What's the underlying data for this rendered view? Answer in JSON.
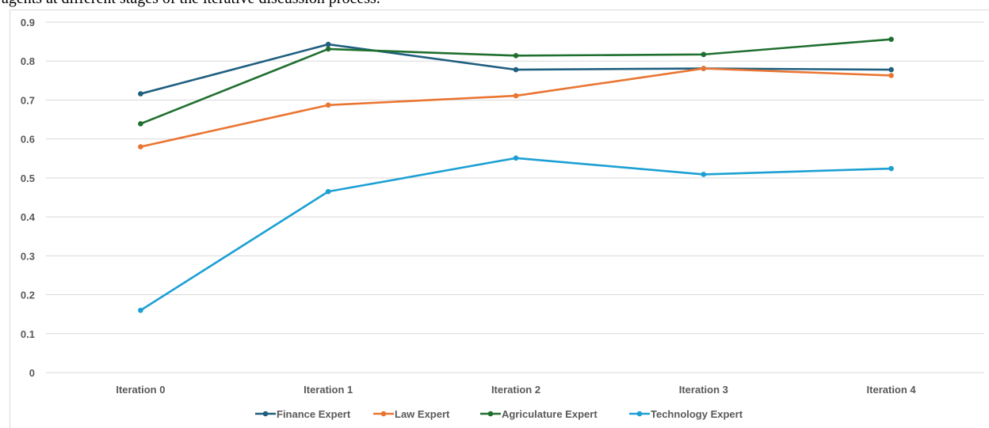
{
  "caption": "agents at different stages of the iterative discussion process.",
  "chart_data": {
    "type": "line",
    "title": "",
    "xlabel": "",
    "ylabel": "",
    "categories": [
      "Iteration 0",
      "Iteration 1",
      "Iteration 2",
      "Iteration 3",
      "Iteration 4"
    ],
    "ylim": [
      0,
      0.9
    ],
    "yticks": [
      "0",
      "0.1",
      "0.2",
      "0.3",
      "0.4",
      "0.5",
      "0.6",
      "0.7",
      "0.8",
      "0.9"
    ],
    "grid": true,
    "legend_position": "bottom",
    "series": [
      {
        "name": "Finance Expert",
        "color": "#1f5f7f",
        "values": [
          0.716,
          0.843,
          0.778,
          0.781,
          0.778
        ]
      },
      {
        "name": "Law Expert",
        "color": "#ea7532",
        "values": [
          0.58,
          0.687,
          0.711,
          0.781,
          0.763
        ]
      },
      {
        "name": "Agriculature Expert",
        "color": "#1f6f2f",
        "values": [
          0.639,
          0.831,
          0.814,
          0.817,
          0.856
        ]
      },
      {
        "name": "Technology Expert",
        "color": "#1ca0d4",
        "values": [
          0.16,
          0.465,
          0.551,
          0.509,
          0.524
        ]
      }
    ]
  }
}
